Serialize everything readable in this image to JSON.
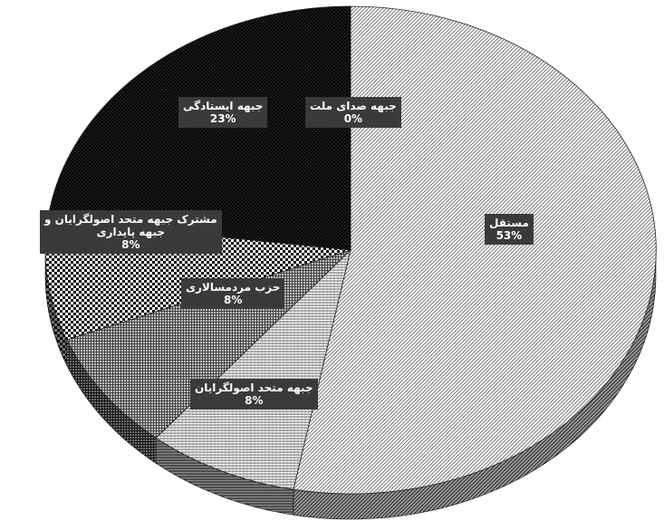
{
  "chart_data": {
    "type": "pie",
    "style": "3d",
    "slices": [
      {
        "label": "جبهه صدای ملت",
        "value": 0,
        "pct_text": "0%",
        "pattern": "pattern-dots-sparse"
      },
      {
        "label": "مستقل",
        "value": 53,
        "pct_text": "53%",
        "pattern": "pattern-diag"
      },
      {
        "label": "جبهه متحد اصولگرایان",
        "value": 8,
        "pct_text": "8%",
        "pattern": "pattern-hlines"
      },
      {
        "label": "حزب مردمسالاری",
        "value": 8,
        "pct_text": "8%",
        "pattern": "pattern-grid"
      },
      {
        "label": "مشترک جبهه متحد اصولگرایان و جبهه پایداری",
        "label_lines": [
          "مشترک جبهه متحد اصولگرایان و",
          "جبهه پایداری"
        ],
        "value": 8,
        "pct_text": "8%",
        "pattern": "pattern-checker"
      },
      {
        "label": "جبهه ایستادگی",
        "value": 23,
        "pct_text": "23%",
        "pattern": "pattern-dense-dots"
      }
    ]
  }
}
